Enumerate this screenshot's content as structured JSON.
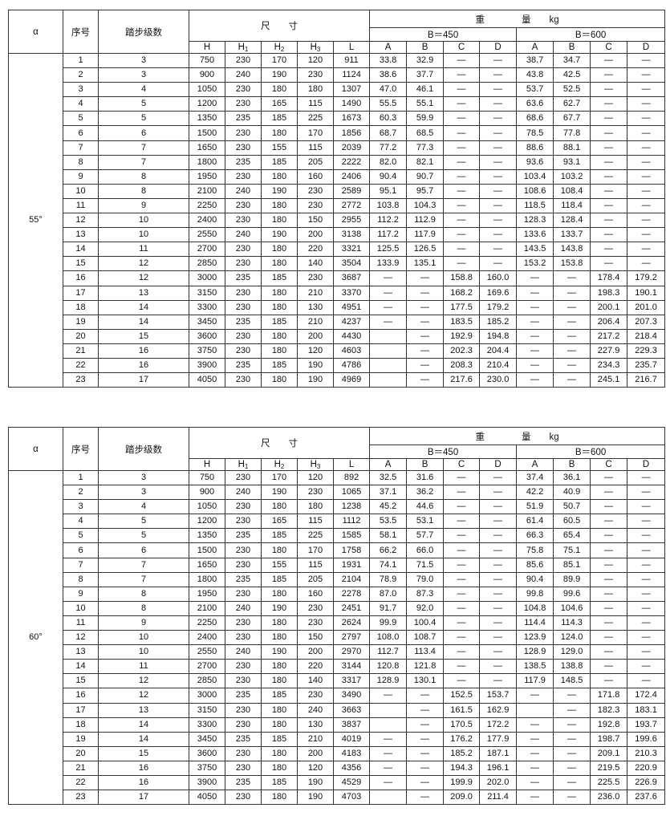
{
  "headers": {
    "alpha": "α",
    "no": "序号",
    "steps": "踏步级数",
    "dimensions": "尺　　寸",
    "weight": "重　　　　量　　kg",
    "dim_cols": [
      {
        "main": "H",
        "sub": ""
      },
      {
        "main": "H",
        "sub": "1"
      },
      {
        "main": "H",
        "sub": "2"
      },
      {
        "main": "H",
        "sub": "3"
      },
      {
        "main": "L",
        "sub": ""
      }
    ],
    "groups": [
      "B＝450",
      "B＝600"
    ],
    "weight_cols": [
      "A",
      "B",
      "C",
      "D",
      "A",
      "B",
      "C",
      "D"
    ]
  },
  "tables": [
    {
      "alpha": "55°",
      "rows": [
        [
          "1",
          "3",
          "750",
          "230",
          "170",
          "120",
          "911",
          "33.8",
          "32.9",
          "—",
          "—",
          "38.7",
          "34.7",
          "—",
          "—"
        ],
        [
          "2",
          "3",
          "900",
          "240",
          "190",
          "230",
          "1124",
          "38.6",
          "37.7",
          "—",
          "—",
          "43.8",
          "42.5",
          "—",
          "—"
        ],
        [
          "3",
          "4",
          "1050",
          "230",
          "180",
          "180",
          "1307",
          "47.0",
          "46.1",
          "—",
          "—",
          "53.7",
          "52.5",
          "—",
          "—"
        ],
        [
          "4",
          "5",
          "1200",
          "230",
          "165",
          "115",
          "1490",
          "55.5",
          "55.1",
          "—",
          "—",
          "63.6",
          "62.7",
          "—",
          "—"
        ],
        [
          "5",
          "5",
          "1350",
          "235",
          "185",
          "225",
          "1673",
          "60.3",
          "59.9",
          "—",
          "—",
          "68.6",
          "67.7",
          "—",
          "—"
        ],
        [
          "6",
          "6",
          "1500",
          "230",
          "180",
          "170",
          "1856",
          "68.7",
          "68.5",
          "—",
          "—",
          "78.5",
          "77.8",
          "—",
          "—"
        ],
        [
          "7",
          "7",
          "1650",
          "230",
          "155",
          "115",
          "2039",
          "77.2",
          "77.3",
          "—",
          "—",
          "88.6",
          "88.1",
          "—",
          "—"
        ],
        [
          "8",
          "7",
          "1800",
          "235",
          "185",
          "205",
          "2222",
          "82.0",
          "82.1",
          "—",
          "—",
          "93.6",
          "93.1",
          "—",
          "—"
        ],
        [
          "9",
          "8",
          "1950",
          "230",
          "180",
          "160",
          "2406",
          "90.4",
          "90.7",
          "—",
          "—",
          "103.4",
          "103.2",
          "—",
          "—"
        ],
        [
          "10",
          "8",
          "2100",
          "240",
          "190",
          "230",
          "2589",
          "95.1",
          "95.7",
          "—",
          "—",
          "108.6",
          "108.4",
          "—",
          "—"
        ],
        [
          "11",
          "9",
          "2250",
          "230",
          "180",
          "230",
          "2772",
          "103.8",
          "104.3",
          "—",
          "—",
          "118.5",
          "118.4",
          "—",
          "—"
        ],
        [
          "12",
          "10",
          "2400",
          "230",
          "180",
          "150",
          "2955",
          "112.2",
          "112.9",
          "—",
          "—",
          "128.3",
          "128.4",
          "—",
          "—"
        ],
        [
          "13",
          "10",
          "2550",
          "240",
          "190",
          "200",
          "3138",
          "117.2",
          "117.9",
          "—",
          "—",
          "133.6",
          "133.7",
          "—",
          "—"
        ],
        [
          "14",
          "11",
          "2700",
          "230",
          "180",
          "220",
          "3321",
          "125.5",
          "126.5",
          "—",
          "—",
          "143.5",
          "143.8",
          "—",
          "—"
        ],
        [
          "15",
          "12",
          "2850",
          "230",
          "180",
          "140",
          "3504",
          "133.9",
          "135.1",
          "—",
          "—",
          "153.2",
          "153.8",
          "—",
          "—"
        ],
        [
          "16",
          "12",
          "3000",
          "235",
          "185",
          "230",
          "3687",
          "—",
          "—",
          "158.8",
          "160.0",
          "—",
          "—",
          "178.4",
          "179.2"
        ],
        [
          "17",
          "13",
          "3150",
          "230",
          "180",
          "210",
          "3370",
          "—",
          "—",
          "168.2",
          "169.6",
          "—",
          "—",
          "198.3",
          "190.1"
        ],
        [
          "18",
          "14",
          "3300",
          "230",
          "180",
          "130",
          "4951",
          "—",
          "—",
          "177.5",
          "179.2",
          "—",
          "—",
          "200.1",
          "201.0"
        ],
        [
          "19",
          "14",
          "3450",
          "235",
          "185",
          "210",
          "4237",
          "—",
          "—",
          "183.5",
          "185.2",
          "—",
          "—",
          "206.4",
          "207.3"
        ],
        [
          "20",
          "15",
          "3600",
          "230",
          "180",
          "200",
          "4430",
          "",
          "—",
          "192.9",
          "194.8",
          "—",
          "—",
          "217.2",
          "218.4"
        ],
        [
          "21",
          "16",
          "3750",
          "230",
          "180",
          "120",
          "4603",
          "",
          "—",
          "202.3",
          "204.4",
          "—",
          "—",
          "227.9",
          "229.3"
        ],
        [
          "22",
          "16",
          "3900",
          "235",
          "185",
          "190",
          "4786",
          "",
          "—",
          "208.3",
          "210.4",
          "—",
          "—",
          "234.3",
          "235.7"
        ],
        [
          "23",
          "17",
          "4050",
          "230",
          "180",
          "190",
          "4969",
          "",
          "—",
          "217.6",
          "230.0",
          "—",
          "—",
          "245.1",
          "216.7"
        ]
      ]
    },
    {
      "alpha": "60°",
      "rows": [
        [
          "1",
          "3",
          "750",
          "230",
          "170",
          "120",
          "892",
          "32.5",
          "31.6",
          "—",
          "—",
          "37.4",
          "36.1",
          "—",
          "—"
        ],
        [
          "2",
          "3",
          "900",
          "240",
          "190",
          "230",
          "1065",
          "37.1",
          "36.2",
          "—",
          "—",
          "42.2",
          "40.9",
          "—",
          "—"
        ],
        [
          "3",
          "4",
          "1050",
          "230",
          "180",
          "180",
          "1238",
          "45.2",
          "44.6",
          "—",
          "—",
          "51.9",
          "50.7",
          "—",
          "—"
        ],
        [
          "4",
          "5",
          "1200",
          "230",
          "165",
          "115",
          "1112",
          "53.5",
          "53.1",
          "—",
          "—",
          "61.4",
          "60.5",
          "—",
          "—"
        ],
        [
          "5",
          "5",
          "1350",
          "235",
          "185",
          "225",
          "1585",
          "58.1",
          "57.7",
          "—",
          "—",
          "66.3",
          "65.4",
          "—",
          "—"
        ],
        [
          "6",
          "6",
          "1500",
          "230",
          "180",
          "170",
          "1758",
          "66.2",
          "66.0",
          "—",
          "—",
          "75.8",
          "75.1",
          "—",
          "—"
        ],
        [
          "7",
          "7",
          "1650",
          "230",
          "155",
          "115",
          "1931",
          "74.1",
          "71.5",
          "—",
          "—",
          "85.6",
          "85.1",
          "—",
          "—"
        ],
        [
          "8",
          "7",
          "1800",
          "235",
          "185",
          "205",
          "2104",
          "78.9",
          "79.0",
          "—",
          "—",
          "90.4",
          "89.9",
          "—",
          "—"
        ],
        [
          "9",
          "8",
          "1950",
          "230",
          "180",
          "160",
          "2278",
          "87.0",
          "87.3",
          "—",
          "—",
          "99.8",
          "99.6",
          "—",
          "—"
        ],
        [
          "10",
          "8",
          "2100",
          "240",
          "190",
          "230",
          "2451",
          "91.7",
          "92.0",
          "—",
          "—",
          "104.8",
          "104.6",
          "—",
          "—"
        ],
        [
          "11",
          "9",
          "2250",
          "230",
          "180",
          "230",
          "2624",
          "99.9",
          "100.4",
          "—",
          "—",
          "114.4",
          "114.3",
          "—",
          "—"
        ],
        [
          "12",
          "10",
          "2400",
          "230",
          "180",
          "150",
          "2797",
          "108.0",
          "108.7",
          "—",
          "—",
          "123.9",
          "124.0",
          "—",
          "—"
        ],
        [
          "13",
          "10",
          "2550",
          "240",
          "190",
          "200",
          "2970",
          "112.7",
          "113.4",
          "—",
          "—",
          "128.9",
          "129.0",
          "—",
          "—"
        ],
        [
          "14",
          "11",
          "2700",
          "230",
          "180",
          "220",
          "3144",
          "120.8",
          "121.8",
          "—",
          "—",
          "138.5",
          "138.8",
          "—",
          "—"
        ],
        [
          "15",
          "12",
          "2850",
          "230",
          "180",
          "140",
          "3317",
          "128.9",
          "130.1",
          "—",
          "—",
          "117.9",
          "148.5",
          "—",
          "—"
        ],
        [
          "16",
          "12",
          "3000",
          "235",
          "185",
          "230",
          "3490",
          "—",
          "—",
          "152.5",
          "153.7",
          "—",
          "—",
          "171.8",
          "172.4"
        ],
        [
          "17",
          "13",
          "3150",
          "230",
          "180",
          "240",
          "3663",
          "",
          "—",
          "161.5",
          "162.9",
          "",
          "—",
          "182.3",
          "183.1"
        ],
        [
          "18",
          "14",
          "3300",
          "230",
          "180",
          "130",
          "3837",
          "",
          "—",
          "170.5",
          "172.2",
          "—",
          "—",
          "192.8",
          "193.7"
        ],
        [
          "19",
          "14",
          "3450",
          "235",
          "185",
          "210",
          "4019",
          "—",
          "—",
          "176.2",
          "177.9",
          "—",
          "—",
          "198.7",
          "199.6"
        ],
        [
          "20",
          "15",
          "3600",
          "230",
          "180",
          "200",
          "4183",
          "—",
          "—",
          "185.2",
          "187.1",
          "—",
          "—",
          "209.1",
          "210.3"
        ],
        [
          "21",
          "16",
          "3750",
          "230",
          "180",
          "120",
          "4356",
          "—",
          "—",
          "194.3",
          "196.1",
          "—",
          "—",
          "219.5",
          "220.9"
        ],
        [
          "22",
          "16",
          "3900",
          "235",
          "185",
          "190",
          "4529",
          "—",
          "—",
          "199.9",
          "202.0",
          "—",
          "—",
          "225.5",
          "226.9"
        ],
        [
          "23",
          "17",
          "4050",
          "230",
          "180",
          "190",
          "4703",
          "",
          "—",
          "209.0",
          "211.4",
          "—",
          "—",
          "236.0",
          "237.6"
        ]
      ]
    }
  ]
}
